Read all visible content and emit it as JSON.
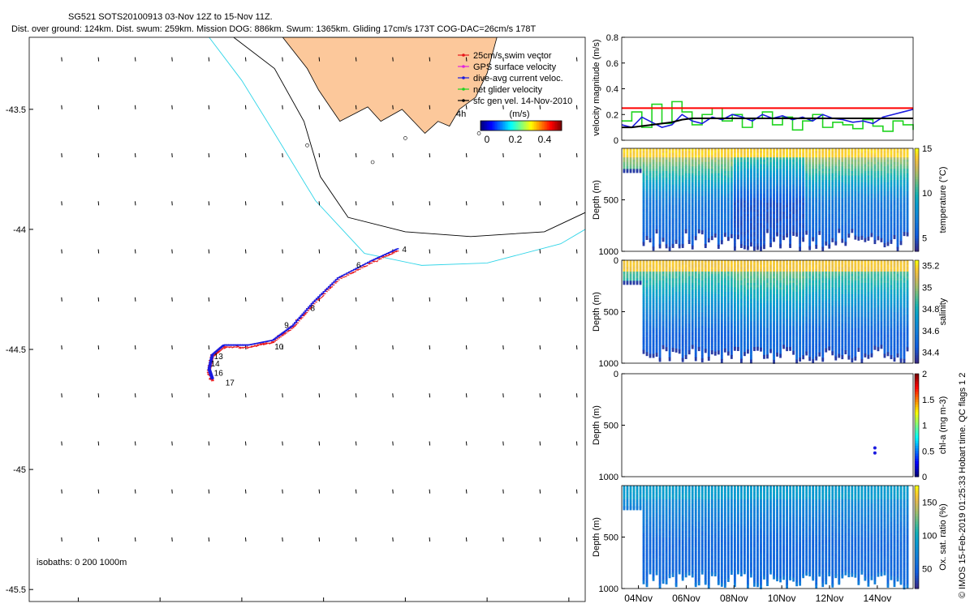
{
  "header": {
    "title_line1": "SG521 SOTS20100913 03-Nov 12Z to 15-Nov 11Z.",
    "title_line2": "Dist. over ground: 124km. Dist. swum: 259km. Mission DOG: 886km. Swum: 1365km. Gliding 17cm/s 173T COG-DAC=26cm/s 178T"
  },
  "credit": "© IMOS 15-Feb-2019 01:25:33 Hobart time. QC flags 1  2",
  "colors": {
    "land": "#fcc89b",
    "isobath_200": "#000000",
    "isobath_1000": "#30d5e8",
    "swim": "#e8161b",
    "gps": "#e022e0",
    "dac": "#1a1adf",
    "net": "#1fd41f",
    "sfc": "#000000",
    "speed_limit": "#ff0000"
  },
  "chart_data": [
    {
      "type": "map",
      "name": "track-map",
      "xlim": [
        144.2,
        147.6
      ],
      "ylim": [
        -45.55,
        -43.2
      ],
      "xticks": [
        144.5,
        145,
        145.5,
        146,
        146.5,
        147,
        147.5
      ],
      "yticks": [
        -43.5,
        -44,
        -44.5,
        -45,
        -45.5
      ],
      "isobaths_label": "isobaths: 0   200   1000m",
      "legend": {
        "position": "top-right",
        "items": [
          {
            "label": "25cm/s swim vector",
            "color": "#e8161b"
          },
          {
            "label": "GPS surface velocity",
            "color": "#e022e0"
          },
          {
            "label": "dive-avg current veloc.",
            "color": "#1a1adf"
          },
          {
            "label": "net glider velocity",
            "color": "#1fd41f"
          },
          {
            "label": "sfc gen vel. 14-Nov-2010",
            "color": "#000000"
          }
        ],
        "time_label": "4h"
      },
      "colorbar": {
        "label": "(m/s)",
        "range": [
          0,
          0.5
        ],
        "ticks": [
          "0",
          "0.2",
          "0.4"
        ]
      },
      "track": [
        [
          146.46,
          -44.08
        ],
        [
          146.3,
          -44.13
        ],
        [
          146.1,
          -44.2
        ],
        [
          145.95,
          -44.3
        ],
        [
          145.82,
          -44.4
        ],
        [
          145.7,
          -44.46
        ],
        [
          145.55,
          -44.48
        ],
        [
          145.4,
          -44.48
        ],
        [
          145.33,
          -44.52
        ],
        [
          145.31,
          -44.58
        ],
        [
          145.33,
          -44.62
        ]
      ],
      "day_labels": [
        {
          "text": "4",
          "lon": 146.48,
          "lat": -44.095
        },
        {
          "text": "6",
          "lon": 146.2,
          "lat": -44.16
        },
        {
          "text": "8",
          "lon": 145.92,
          "lat": -44.34
        },
        {
          "text": "9",
          "lon": 145.76,
          "lat": -44.41
        },
        {
          "text": "10",
          "lon": 145.7,
          "lat": -44.5
        },
        {
          "text": "13",
          "lon": 145.33,
          "lat": -44.54
        },
        {
          "text": "14",
          "lon": 145.31,
          "lat": -44.57
        },
        {
          "text": "16",
          "lon": 145.33,
          "lat": -44.61
        },
        {
          "text": "17",
          "lon": 145.4,
          "lat": -44.65
        }
      ],
      "isobath_200": [
        [
          145.45,
          -43.2
        ],
        [
          145.7,
          -43.33
        ],
        [
          145.88,
          -43.55
        ],
        [
          145.98,
          -43.78
        ],
        [
          146.15,
          -43.95
        ],
        [
          146.5,
          -44.01
        ],
        [
          146.9,
          -44.03
        ],
        [
          147.35,
          -44.01
        ],
        [
          147.6,
          -43.93
        ]
      ],
      "isobath_1000": [
        [
          145.3,
          -43.2
        ],
        [
          145.5,
          -43.38
        ],
        [
          145.7,
          -43.6
        ],
        [
          145.95,
          -43.88
        ],
        [
          146.25,
          -44.1
        ],
        [
          146.6,
          -44.15
        ],
        [
          147.0,
          -44.14
        ],
        [
          147.45,
          -44.06
        ],
        [
          147.6,
          -44.0
        ]
      ],
      "coast": [
        [
          145.75,
          -43.2
        ],
        [
          145.9,
          -43.33
        ],
        [
          145.97,
          -43.42
        ],
        [
          146.05,
          -43.5
        ],
        [
          146.1,
          -43.55
        ],
        [
          146.27,
          -43.49
        ],
        [
          146.35,
          -43.55
        ],
        [
          146.48,
          -43.5
        ],
        [
          146.55,
          -43.55
        ],
        [
          146.62,
          -43.6
        ],
        [
          146.7,
          -43.55
        ],
        [
          146.77,
          -43.57
        ],
        [
          146.83,
          -43.5
        ],
        [
          146.93,
          -43.45
        ],
        [
          147.0,
          -43.35
        ],
        [
          147.06,
          -43.2
        ]
      ]
    },
    {
      "type": "line",
      "name": "velocity-panel",
      "xlabel": "",
      "ylabel": "velocity magnitude (m/s)",
      "ylim": [
        0,
        0.8
      ],
      "yticks": [
        "0",
        "0.2",
        "0.4",
        "0.6",
        "0.8"
      ],
      "reference_line": 0.25,
      "series": [
        {
          "color": "#1fd41f",
          "values": [
            0.15,
            0.22,
            0.1,
            0.28,
            0.13,
            0.3,
            0.22,
            0.12,
            0.2,
            0.25,
            0.15,
            0.2,
            0.1,
            0.17,
            0.22,
            0.12,
            0.18,
            0.08,
            0.15,
            0.2,
            0.1,
            0.14,
            0.12,
            0.09,
            0.16,
            0.11,
            0.07,
            0.15,
            0.12,
            0.08
          ]
        },
        {
          "color": "#1a1adf",
          "values": [
            0.12,
            0.1,
            0.18,
            0.14,
            0.1,
            0.12,
            0.2,
            0.15,
            0.13,
            0.18,
            0.16,
            0.2,
            0.18,
            0.15,
            0.2,
            0.17,
            0.19,
            0.16,
            0.18,
            0.15,
            0.2,
            0.17,
            0.16,
            0.14,
            0.15,
            0.13,
            0.18,
            0.2,
            0.22,
            0.24
          ]
        },
        {
          "color": "#000000",
          "values": [
            0.1,
            0.1,
            0.11,
            0.12,
            0.13,
            0.14,
            0.16,
            0.17,
            0.17,
            0.17,
            0.17,
            0.17,
            0.17,
            0.17,
            0.17,
            0.17,
            0.17,
            0.17,
            0.17,
            0.17,
            0.17,
            0.17,
            0.17,
            0.17,
            0.17,
            0.17,
            0.17,
            0.17,
            0.17,
            0.17
          ]
        }
      ]
    },
    {
      "type": "scatter",
      "name": "temperature-section",
      "ylabel": "Depth (m)",
      "ylim": [
        1000,
        0
      ],
      "yticks": [
        "500",
        "1000"
      ],
      "colorbar_label": "temperature (°C)",
      "colorbar_ticks": [
        "5",
        "10",
        "15"
      ],
      "crange": [
        3.5,
        15
      ],
      "colormap": "parula"
    },
    {
      "type": "scatter",
      "name": "salinity-section",
      "ylabel": "Depth (m)",
      "ylim": [
        1000,
        0
      ],
      "yticks": [
        "0",
        "500",
        "1000"
      ],
      "colorbar_label": "salinity",
      "colorbar_ticks": [
        "34.4",
        "34.6",
        "34.8",
        "35",
        "35.2"
      ],
      "crange": [
        34.3,
        35.25
      ],
      "colormap": "parula"
    },
    {
      "type": "scatter",
      "name": "chla-section",
      "ylabel": "Depth (m)",
      "ylim": [
        1000,
        0
      ],
      "yticks": [
        "0",
        "500",
        "1000"
      ],
      "colorbar_label": "chl-a (mg m-3)",
      "colorbar_ticks": [
        "0",
        "0.5",
        "1",
        "1.5",
        "2"
      ],
      "crange": [
        0,
        2
      ],
      "points": [
        {
          "day": 13.9,
          "depth": 720
        },
        {
          "day": 13.9,
          "depth": 770
        }
      ]
    },
    {
      "type": "scatter",
      "name": "oxygen-section",
      "ylabel": "Depth (m)",
      "ylim": [
        1000,
        0
      ],
      "yticks": [
        "500",
        "1000"
      ],
      "colorbar_label": "Ox. sat. ratio (%)",
      "colorbar_ticks": [
        "50",
        "100",
        "150"
      ],
      "crange": [
        20,
        175
      ],
      "xticks": [
        "04Nov",
        "06Nov",
        "08Nov",
        "10Nov",
        "12Nov",
        "14Nov"
      ],
      "xrange_days": [
        3.3,
        15.5
      ]
    }
  ]
}
